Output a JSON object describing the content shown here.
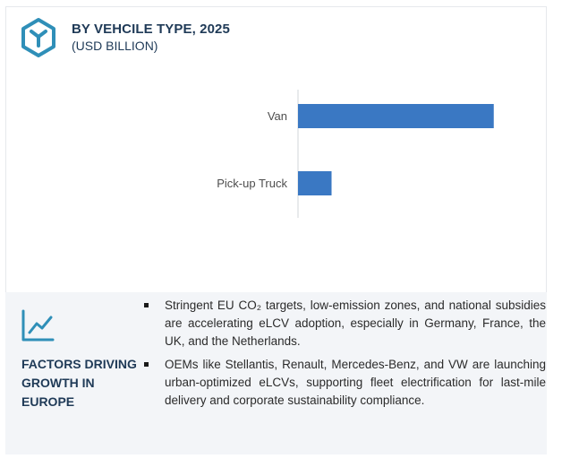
{
  "header": {
    "title": "BY VEHCILE TYPE, 2025",
    "subtitle": "(USD BILLION)",
    "icon": "cube-hexagon-icon"
  },
  "chart_data": {
    "type": "bar",
    "orientation": "horizontal",
    "categories": [
      "Van",
      "Pick-up Truck"
    ],
    "values": [
      10.5,
      1.8
    ],
    "title": "BY VEHCILE TYPE, 2025",
    "subtitle": "(USD BILLION)",
    "xlim": [
      0,
      12
    ],
    "bar_color": "#3a78c3",
    "grid": false
  },
  "factors": {
    "icon": "trend-chart-icon",
    "title": "FACTORS DRIVING GROWTH IN EUROPE",
    "bullets": [
      "Stringent EU CO₂ targets, low-emission zones, and national subsidies are accelerating eLCV adoption, especially in Germany, France, the UK, and the Netherlands.",
      "OEMs like Stellantis, Renault, Mercedes-Benz, and VW are launching urban-optimized eLCVs, supporting fleet electrification for last-mile delivery and corporate sustainability compliance."
    ]
  },
  "colors": {
    "accent": "#3a78c3",
    "heading": "#1f3a57",
    "icon": "#2f8fb8",
    "panel": "#f3f5f8"
  }
}
